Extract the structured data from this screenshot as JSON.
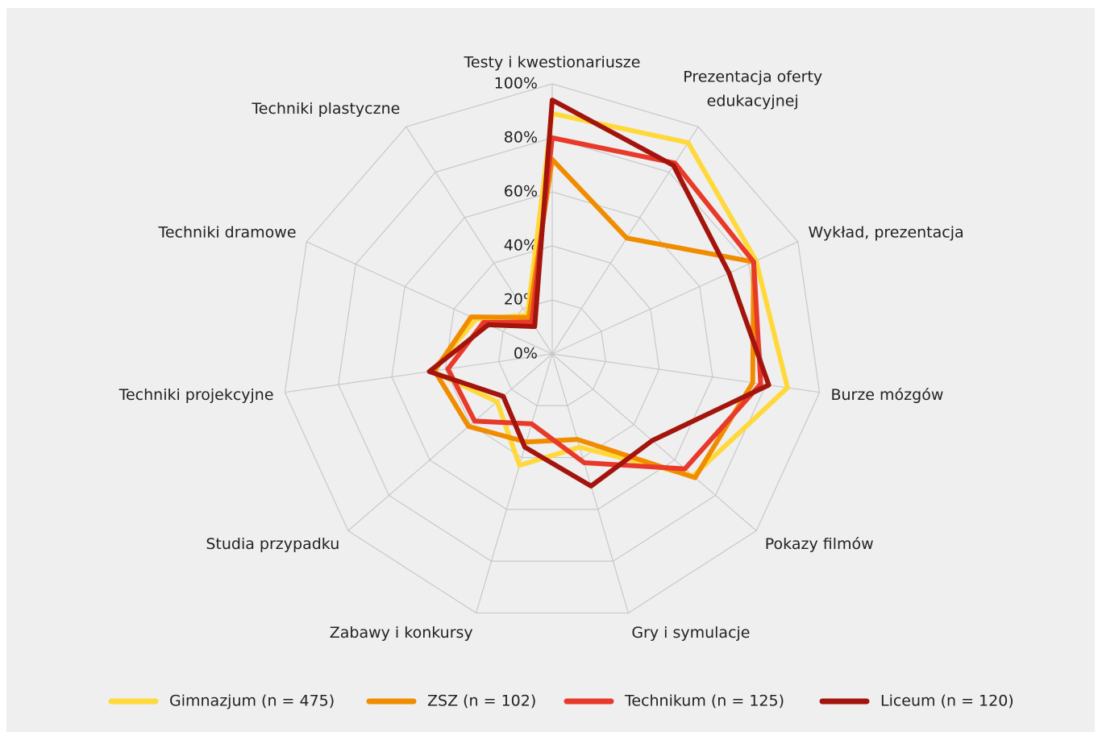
{
  "chart_data": {
    "type": "radar",
    "categories": [
      "Testy i kwestionariusze",
      "Prezentacja oferty edukacyjnej",
      "Wykład, prezentacja",
      "Burze mózgów",
      "Pokazy filmów",
      "Gry i symulacje",
      "Zabawy i konkursy",
      "Studia przypadku",
      "Techniki projekcyjne",
      "Techniki dramowe",
      "Techniki plastyczne"
    ],
    "series": [
      {
        "name": "Gimnazjum (n = 475)",
        "color": "#ffd93b",
        "values": [
          89,
          93,
          83,
          88,
          69,
          36,
          43,
          27,
          45,
          31,
          17
        ]
      },
      {
        "name": "ZSZ (n = 102)",
        "color": "#f08c00",
        "values": [
          72,
          51,
          82,
          75,
          70,
          33,
          34,
          41,
          44,
          33,
          16
        ]
      },
      {
        "name": "Technikum (n = 125)",
        "color": "#e8392a",
        "values": [
          80,
          84,
          82,
          78,
          65,
          42,
          27,
          38,
          39,
          28,
          14
        ]
      },
      {
        "name": "Liceum (n = 120)",
        "color": "#a3140c",
        "values": [
          94,
          83,
          72,
          81,
          49,
          51,
          36,
          24,
          46,
          26,
          12
        ]
      }
    ],
    "ylim": [
      0,
      100
    ],
    "yticks": [
      {
        "value": 0,
        "label": "0%"
      },
      {
        "value": 20,
        "label": "20%"
      },
      {
        "value": 40,
        "label": "40%"
      },
      {
        "value": 60,
        "label": "60%"
      },
      {
        "value": 80,
        "label": "80%"
      },
      {
        "value": 100,
        "label": "100%"
      }
    ],
    "grid": true,
    "legend": "bottom"
  }
}
